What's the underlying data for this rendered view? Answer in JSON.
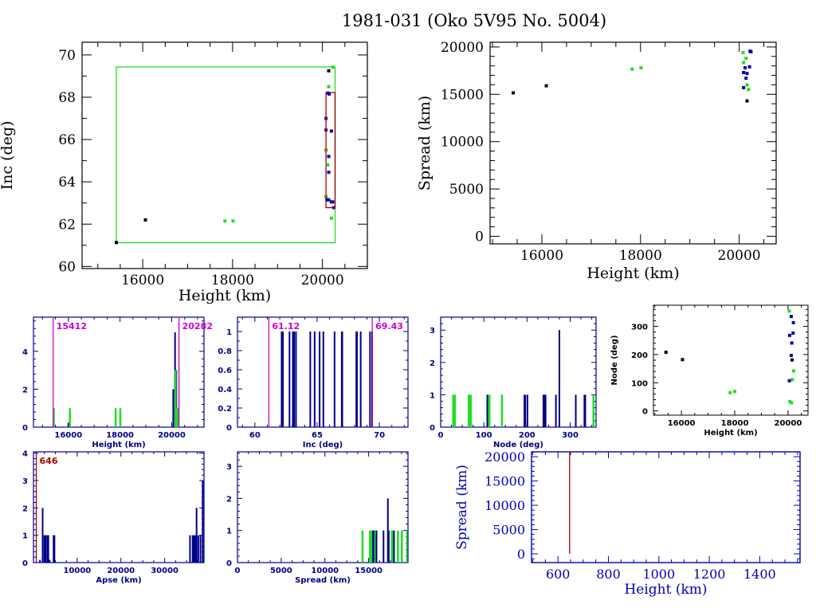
{
  "title": "1981-031 (Oko 5V95 No. 5004)",
  "colors": {
    "black": "#000000",
    "green": "#22dd22",
    "blue": "#0000b4",
    "navy": "#00008b",
    "magenta": "#cc00cc",
    "red": "#aa0000",
    "purple": "#550088",
    "olive": "#7a7a00"
  },
  "chart_data": [
    {
      "id": "inc-vs-height",
      "type": "scatter",
      "title": "",
      "xlabel": "Height (km)",
      "ylabel": "Inc (deg)",
      "xlim": [
        14650,
        21000
      ],
      "ylim": [
        59.9,
        70.6
      ],
      "xticks": [
        16000,
        18000,
        20000
      ],
      "yticks": [
        60,
        62,
        64,
        66,
        68,
        70
      ],
      "boxes": [
        {
          "name": "green-range-box",
          "x": [
            15412,
            20282
          ],
          "y": [
            61.12,
            69.43
          ],
          "color": "green"
        },
        {
          "name": "red-range-box",
          "x": [
            20080,
            20282
          ],
          "y": [
            62.78,
            68.22
          ],
          "color": "red"
        }
      ],
      "points": [
        {
          "x": 15412,
          "y": 61.13,
          "color": "black"
        },
        {
          "x": 16060,
          "y": 62.2,
          "color": "black"
        },
        {
          "x": 17830,
          "y": 62.15,
          "color": "green"
        },
        {
          "x": 18010,
          "y": 62.15,
          "color": "green"
        },
        {
          "x": 20230,
          "y": 69.42,
          "color": "green"
        },
        {
          "x": 20140,
          "y": 69.25,
          "color": "black"
        },
        {
          "x": 20140,
          "y": 68.5,
          "color": "green"
        },
        {
          "x": 20120,
          "y": 68.2,
          "color": "purple"
        },
        {
          "x": 20150,
          "y": 68.15,
          "color": "blue"
        },
        {
          "x": 20080,
          "y": 67.0,
          "color": "purple"
        },
        {
          "x": 20080,
          "y": 66.45,
          "color": "purple"
        },
        {
          "x": 20200,
          "y": 66.4,
          "color": "blue"
        },
        {
          "x": 20080,
          "y": 65.5,
          "color": "olive"
        },
        {
          "x": 20140,
          "y": 65.2,
          "color": "blue"
        },
        {
          "x": 20120,
          "y": 64.8,
          "color": "green"
        },
        {
          "x": 20140,
          "y": 64.45,
          "color": "blue"
        },
        {
          "x": 20080,
          "y": 63.3,
          "color": "olive"
        },
        {
          "x": 20100,
          "y": 63.15,
          "color": "blue"
        },
        {
          "x": 20140,
          "y": 63.15,
          "color": "blue"
        },
        {
          "x": 20200,
          "y": 63.05,
          "color": "blue"
        },
        {
          "x": 20230,
          "y": 63.05,
          "color": "blue"
        },
        {
          "x": 20250,
          "y": 62.78,
          "color": "purple"
        },
        {
          "x": 20200,
          "y": 62.28,
          "color": "green"
        }
      ]
    },
    {
      "id": "spread-vs-height",
      "type": "scatter",
      "xlabel": "Height (km)",
      "ylabel": "Spread (km)",
      "xlim": [
        14950,
        20750
      ],
      "ylim": [
        -800,
        20500
      ],
      "xticks": [
        16000,
        18000,
        20000
      ],
      "yticks": [
        0,
        5000,
        10000,
        15000,
        20000
      ],
      "points": [
        {
          "x": 15420,
          "y": 15150,
          "color": "black"
        },
        {
          "x": 16090,
          "y": 15900,
          "color": "black"
        },
        {
          "x": 17830,
          "y": 17650,
          "color": "green"
        },
        {
          "x": 18010,
          "y": 17800,
          "color": "green"
        },
        {
          "x": 20080,
          "y": 19400,
          "color": "green"
        },
        {
          "x": 20220,
          "y": 19550,
          "color": "blue"
        },
        {
          "x": 20240,
          "y": 19500,
          "color": "blue"
        },
        {
          "x": 20140,
          "y": 18800,
          "color": "green"
        },
        {
          "x": 20090,
          "y": 18350,
          "color": "green"
        },
        {
          "x": 20210,
          "y": 17900,
          "color": "blue"
        },
        {
          "x": 20120,
          "y": 17800,
          "color": "blue"
        },
        {
          "x": 20090,
          "y": 17300,
          "color": "blue"
        },
        {
          "x": 20160,
          "y": 17200,
          "color": "blue"
        },
        {
          "x": 20140,
          "y": 16700,
          "color": "blue"
        },
        {
          "x": 20160,
          "y": 16000,
          "color": "green"
        },
        {
          "x": 20090,
          "y": 15700,
          "color": "blue"
        },
        {
          "x": 20190,
          "y": 15500,
          "color": "green"
        },
        {
          "x": 20160,
          "y": 14300,
          "color": "black"
        }
      ]
    },
    {
      "id": "height-histogram",
      "type": "bar",
      "xlabel": "Height (km)",
      "ylabel": "",
      "xlim": [
        14650,
        21250
      ],
      "ylim": [
        0,
        5.8
      ],
      "xticks": [
        16000,
        18000,
        20000
      ],
      "yticks": [
        0,
        2,
        4
      ],
      "markers": [
        {
          "x": 15412,
          "label": "15412",
          "color": "magenta"
        },
        {
          "x": 20282,
          "label": "20282",
          "color": "magenta"
        }
      ],
      "series": [
        {
          "name": "blue-step",
          "color": "navy",
          "x": [
            15420,
            16000,
            17830,
            18010,
            20060,
            20130,
            20180,
            20240
          ],
          "values": [
            0.2,
            0.2,
            0.2,
            0.2,
            2,
            5,
            3,
            1
          ]
        },
        {
          "name": "green",
          "color": "green",
          "x": [
            15440,
            16060,
            17830,
            18010,
            20150,
            20220
          ],
          "values": [
            1,
            1,
            1,
            1,
            3,
            1
          ]
        }
      ]
    },
    {
      "id": "inc-histogram",
      "type": "bar",
      "xlabel": "Inc (deg)",
      "ylabel": "",
      "xlim": [
        58.6,
        72.3
      ],
      "ylim": [
        0,
        1.15
      ],
      "xticks": [
        60,
        65,
        70
      ],
      "yticks": [
        0,
        0.2,
        0.4,
        0.6,
        0.8,
        1
      ],
      "ytick_labels": [
        "0",
        "0.2",
        "0.4",
        "0.6",
        "0.8",
        "1"
      ],
      "markers": [
        {
          "x": 61.12,
          "label": "61.12",
          "color": "magenta"
        },
        {
          "x": 69.43,
          "label": "69.43",
          "color": "magenta"
        }
      ],
      "series": [
        {
          "name": "blue",
          "color": "navy",
          "x": [
            62.15,
            62.2,
            62.25,
            62.78,
            63.05,
            63.15,
            63.3,
            64.45,
            64.8,
            65.2,
            65.5,
            66.4,
            66.98,
            67.02,
            68.15,
            68.2,
            68.5,
            69.25,
            69.42
          ],
          "values": [
            1,
            1,
            1,
            1,
            1,
            1,
            1,
            1,
            1,
            1,
            1,
            1,
            1,
            1,
            1,
            1,
            1,
            1,
            1
          ]
        }
      ]
    },
    {
      "id": "node-histogram",
      "type": "bar",
      "xlabel": "Node (deg)",
      "ylabel": "",
      "xlim": [
        0,
        360
      ],
      "ylim": [
        0,
        3.4
      ],
      "xticks": [
        0,
        100,
        200,
        300
      ],
      "yticks": [
        0,
        1,
        2,
        3
      ],
      "series": [
        {
          "name": "green",
          "color": "green",
          "x": [
            29,
            33,
            65,
            68,
            70,
            110,
            113,
            142,
            354
          ],
          "values": [
            1,
            1,
            1,
            1,
            1,
            1,
            1,
            1,
            1
          ]
        },
        {
          "name": "blue",
          "color": "navy",
          "x": [
            108,
            194,
            196,
            201,
            238,
            241,
            243,
            267,
            275,
            313,
            333,
            335
          ],
          "values": [
            1,
            1,
            1,
            1,
            1,
            1,
            1,
            1,
            3,
            1,
            1,
            1
          ]
        }
      ]
    },
    {
      "id": "node-vs-height",
      "type": "scatter",
      "xlabel": "Height (km)",
      "ylabel": "Node (deg)",
      "xlim": [
        14950,
        20750
      ],
      "ylim": [
        -15,
        375
      ],
      "xticks": [
        16000,
        18000,
        20000
      ],
      "yticks": [
        0,
        100,
        200,
        300
      ],
      "points": [
        {
          "x": 15420,
          "y": 208,
          "color": "black"
        },
        {
          "x": 16040,
          "y": 182,
          "color": "black"
        },
        {
          "x": 17830,
          "y": 65,
          "color": "green"
        },
        {
          "x": 18000,
          "y": 69,
          "color": "green"
        },
        {
          "x": 20050,
          "y": 354,
          "color": "green"
        },
        {
          "x": 20120,
          "y": 335,
          "color": "blue"
        },
        {
          "x": 20200,
          "y": 313,
          "color": "blue"
        },
        {
          "x": 20060,
          "y": 268,
          "color": "blue"
        },
        {
          "x": 20190,
          "y": 276,
          "color": "blue"
        },
        {
          "x": 20140,
          "y": 241,
          "color": "blue"
        },
        {
          "x": 20120,
          "y": 197,
          "color": "blue"
        },
        {
          "x": 20150,
          "y": 181,
          "color": "black"
        },
        {
          "x": 20210,
          "y": 142,
          "color": "green"
        },
        {
          "x": 20160,
          "y": 111,
          "color": "green"
        },
        {
          "x": 20050,
          "y": 107,
          "color": "blue"
        },
        {
          "x": 20070,
          "y": 33,
          "color": "green"
        },
        {
          "x": 20130,
          "y": 29,
          "color": "green"
        }
      ]
    },
    {
      "id": "apse-histogram",
      "type": "bar",
      "xlabel": "Apse (km)",
      "ylabel": "",
      "xlim": [
        0,
        39000
      ],
      "ylim": [
        0,
        4.05
      ],
      "xticks": [
        10000,
        20000,
        30000
      ],
      "yticks": [
        0,
        1,
        2,
        3,
        4
      ],
      "markers": [
        {
          "x": 646,
          "label": "646",
          "color": "red"
        }
      ],
      "series": [
        {
          "name": "blue",
          "color": "navy",
          "x": [
            1500,
            2100,
            2500,
            2800,
            3200,
            3400,
            3700,
            4600,
            4800,
            35800,
            36400,
            36700,
            37000,
            37300,
            37700,
            38200,
            38700
          ],
          "values": [
            0.1,
            2,
            1,
            1,
            1,
            1,
            0.1,
            1,
            1,
            1,
            1,
            1,
            1,
            2,
            1,
            1,
            3
          ]
        }
      ]
    },
    {
      "id": "spread-histogram",
      "type": "bar",
      "xlabel": "Spread (km)",
      "ylabel": "",
      "xlim": [
        0,
        19500
      ],
      "ylim": [
        0,
        3.45
      ],
      "xticks": [
        0,
        5000,
        10000,
        15000
      ],
      "yticks": [
        0,
        1,
        2,
        3
      ],
      "series": [
        {
          "name": "green",
          "color": "green",
          "x": [
            14300,
            15150,
            15300,
            15700,
            15800,
            17650,
            17800,
            18350,
            18800,
            19400,
            19500
          ],
          "values": [
            1,
            1,
            1,
            1,
            1,
            1,
            1,
            1,
            1,
            1,
            1
          ]
        },
        {
          "name": "blue",
          "color": "navy",
          "x": [
            15500,
            15550,
            15900,
            16700,
            17200,
            17300,
            17900,
            19550
          ],
          "values": [
            1,
            1,
            1,
            1,
            2,
            1,
            1,
            1
          ]
        }
      ]
    },
    {
      "id": "spread-vs-height-low",
      "type": "line",
      "xlabel": "Height (km)",
      "ylabel": "Spread (km)",
      "xlim": [
        495,
        1560
      ],
      "ylim": [
        -1800,
        21000
      ],
      "xticks": [
        600,
        800,
        1000,
        1200,
        1400
      ],
      "yticks": [
        0,
        5000,
        10000,
        15000,
        20000
      ],
      "lines": [
        {
          "x": [
            646,
            646
          ],
          "y": [
            0,
            21000
          ],
          "color": "red"
        }
      ]
    }
  ]
}
